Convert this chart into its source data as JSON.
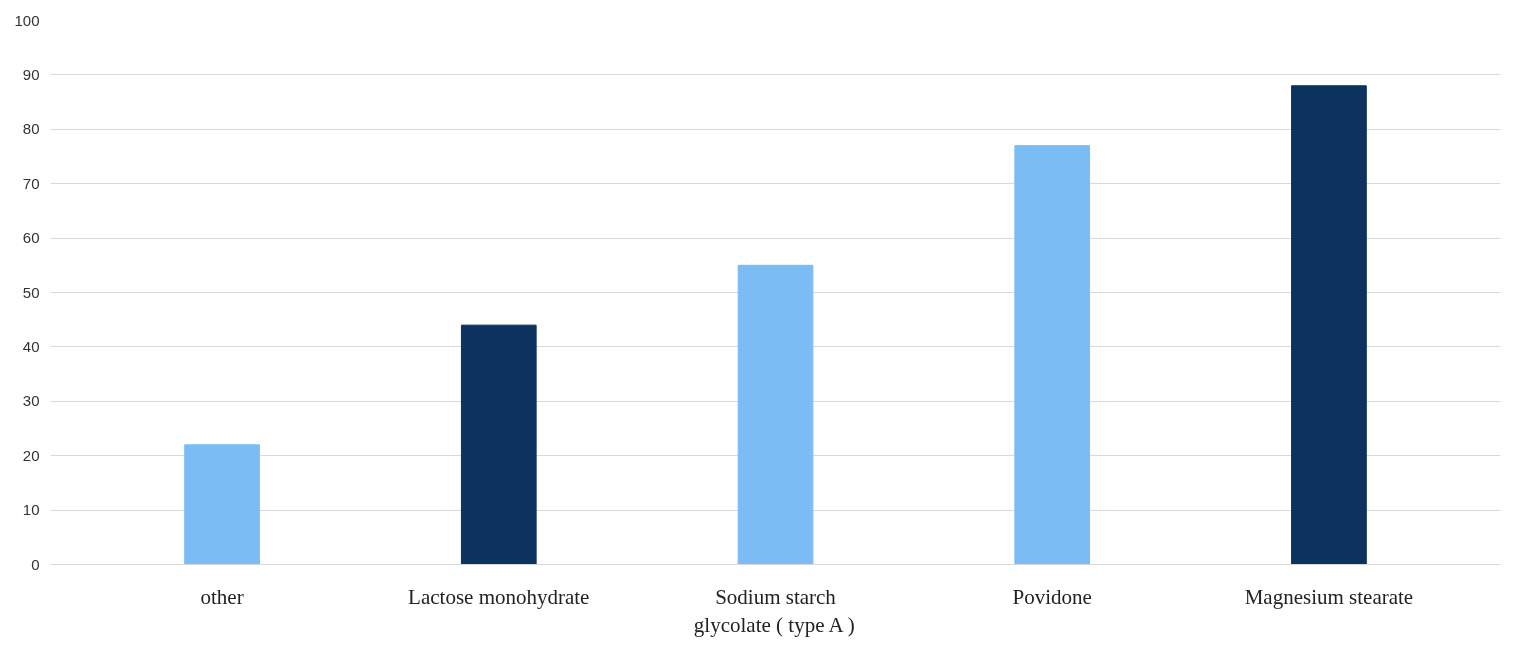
{
  "chart_data": {
    "type": "bar",
    "categories": [
      "other",
      "Lactose monohydrate",
      "Sodium starch glycolate ( type A )",
      "Povidone",
      "Magnesium stearate"
    ],
    "values": [
      22,
      44,
      55,
      77,
      88
    ],
    "colors": [
      "#7bbcf5",
      "#0c3260",
      "#7bbcf5",
      "#7bbcf5",
      "#0c3260"
    ],
    "ylim": [
      0,
      100
    ],
    "yticks": [
      0,
      10,
      20,
      30,
      40,
      50,
      60,
      70,
      80,
      90,
      100
    ],
    "grid": "y"
  }
}
